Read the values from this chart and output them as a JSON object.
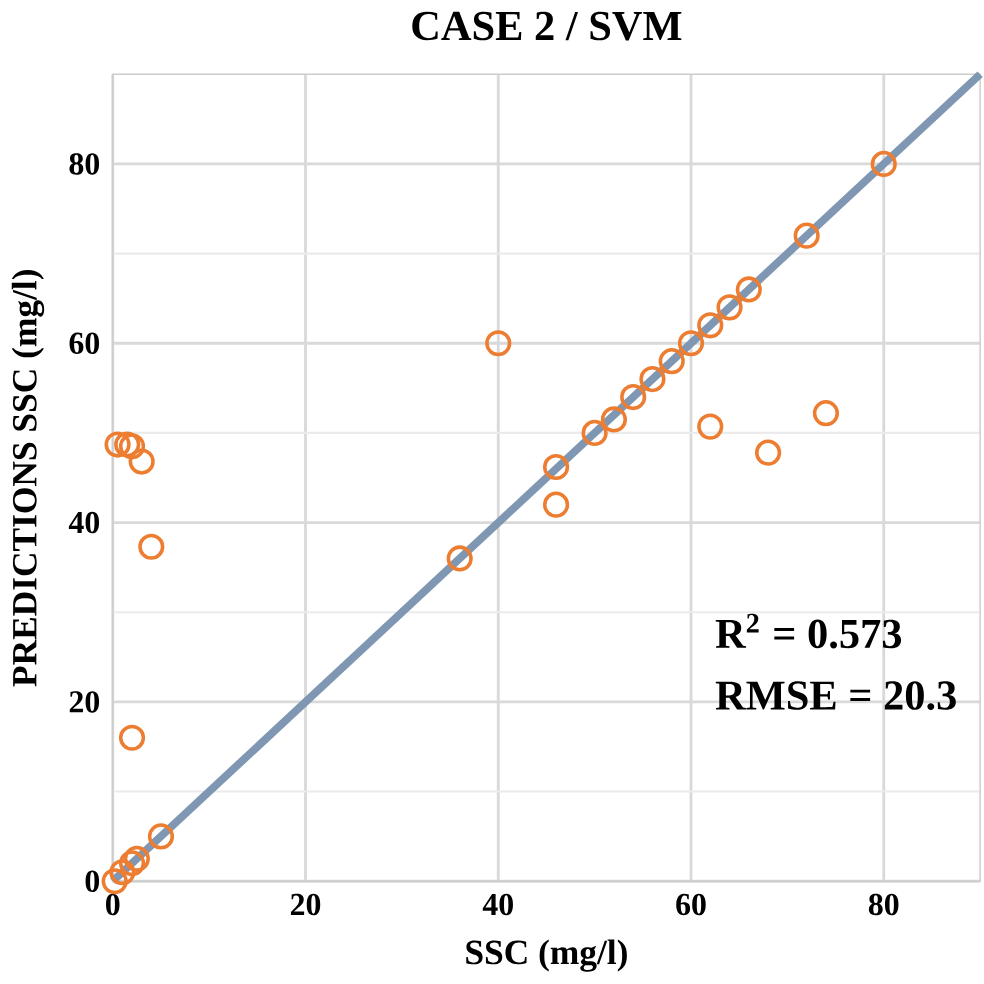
{
  "chart_data": {
    "type": "scatter",
    "title": "CASE 2 / SVM",
    "xlabel": "SSC (mg/l)",
    "ylabel": "PREDICTIONS SSC   (mg/l)",
    "xlim": [
      0,
      90
    ],
    "ylim": [
      0,
      90
    ],
    "xticks": [
      0,
      20,
      40,
      60,
      80
    ],
    "yticks": [
      0,
      20,
      40,
      60,
      80
    ],
    "grid": true,
    "marker": "circle",
    "series": [
      {
        "type": "line",
        "color": "#7f97b2",
        "marker": "none",
        "x": [
          0,
          90
        ],
        "values": [
          0,
          90
        ]
      },
      {
        "color": "#ed7d31",
        "x": [
          0.2,
          1,
          2,
          2.5,
          5,
          0.5,
          1.5,
          2,
          3,
          4,
          2,
          36,
          40,
          46,
          46,
          50,
          52,
          54,
          56,
          58,
          60,
          62,
          64,
          66,
          72,
          80,
          62,
          68,
          74
        ],
        "values": [
          0,
          1,
          2,
          2.5,
          5,
          48.7,
          48.7,
          48.5,
          46.8,
          37.3,
          16,
          36,
          60,
          46.2,
          42,
          50,
          51.5,
          54,
          56,
          58,
          60,
          62,
          64,
          66,
          72,
          80,
          50.7,
          47.8,
          52.2
        ]
      }
    ],
    "annotations": [
      "R$^{2}$ = 0.573",
      "RMSE = 20.3"
    ]
  }
}
